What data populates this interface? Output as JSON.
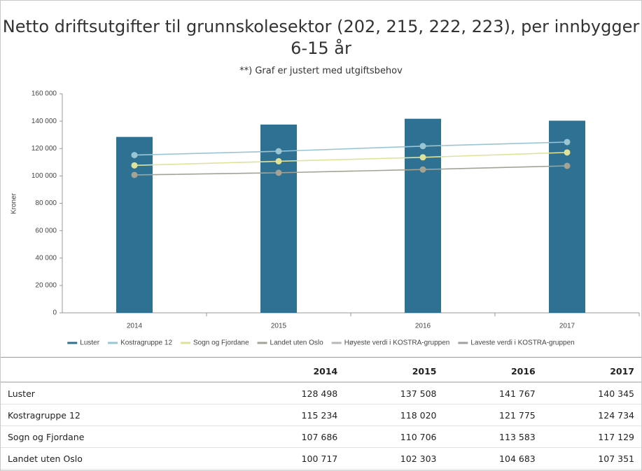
{
  "chart_data": {
    "type": "bar_line",
    "title": "Netto driftsutgifter til grunnskolesektor (202, 215, 222, 223), per innbygger 6-15 år",
    "subtitle": "**) Graf er justert med utgiftsbehov",
    "y_label": "Kroner",
    "categories": [
      "2014",
      "2015",
      "2016",
      "2017"
    ],
    "ylim": [
      0,
      160000
    ],
    "yticks": [
      0,
      {
        "value": 20000,
        "label": "20 000"
      },
      {
        "value": 40000,
        "label": "40 000"
      },
      {
        "value": 60000,
        "label": "60 000"
      },
      {
        "value": 80000,
        "label": "80 000"
      },
      {
        "value": 100000,
        "label": "100 000"
      },
      {
        "value": 120000,
        "label": "120 000"
      },
      {
        "value": 140000,
        "label": "140 000"
      },
      {
        "value": 160000,
        "label": "160 000"
      }
    ],
    "series": [
      {
        "name": "Luster",
        "kind": "bar",
        "color": "#2f7193",
        "values": [
          128498,
          137508,
          141767,
          140345
        ]
      },
      {
        "name": "Kostragruppe 12",
        "kind": "line",
        "color": "#9ac6d4",
        "values": [
          115234,
          118020,
          121775,
          124734
        ]
      },
      {
        "name": "Sogn og Fjordane",
        "kind": "line",
        "color": "#dfe39a",
        "values": [
          107686,
          110706,
          113583,
          117129
        ]
      },
      {
        "name": "Landet uten Oslo",
        "kind": "line",
        "color": "#a3a395",
        "values": [
          100717,
          102303,
          104683,
          107351
        ]
      },
      {
        "name": "Høyeste verdi i KOSTRA-gruppen",
        "kind": "line",
        "color": "#b8b8b8",
        "values": [
          null,
          null,
          null,
          null
        ]
      },
      {
        "name": "Laveste verdi i KOSTRA-gruppen",
        "kind": "line",
        "color": "#a0a0a0",
        "values": [
          null,
          null,
          null,
          null
        ]
      }
    ]
  },
  "table": {
    "header": [
      "2014",
      "2015",
      "2016",
      "2017"
    ],
    "rows": [
      [
        "Luster",
        "128 498",
        "137 508",
        "141 767",
        "140 345"
      ],
      [
        "Kostragruppe 12",
        "115 234",
        "118 020",
        "121 775",
        "124 734"
      ],
      [
        "Sogn og Fjordane",
        "107 686",
        "110 706",
        "113 583",
        "117 129"
      ],
      [
        "Landet uten Oslo",
        "100 717",
        "102 303",
        "104 683",
        "107 351"
      ]
    ]
  }
}
